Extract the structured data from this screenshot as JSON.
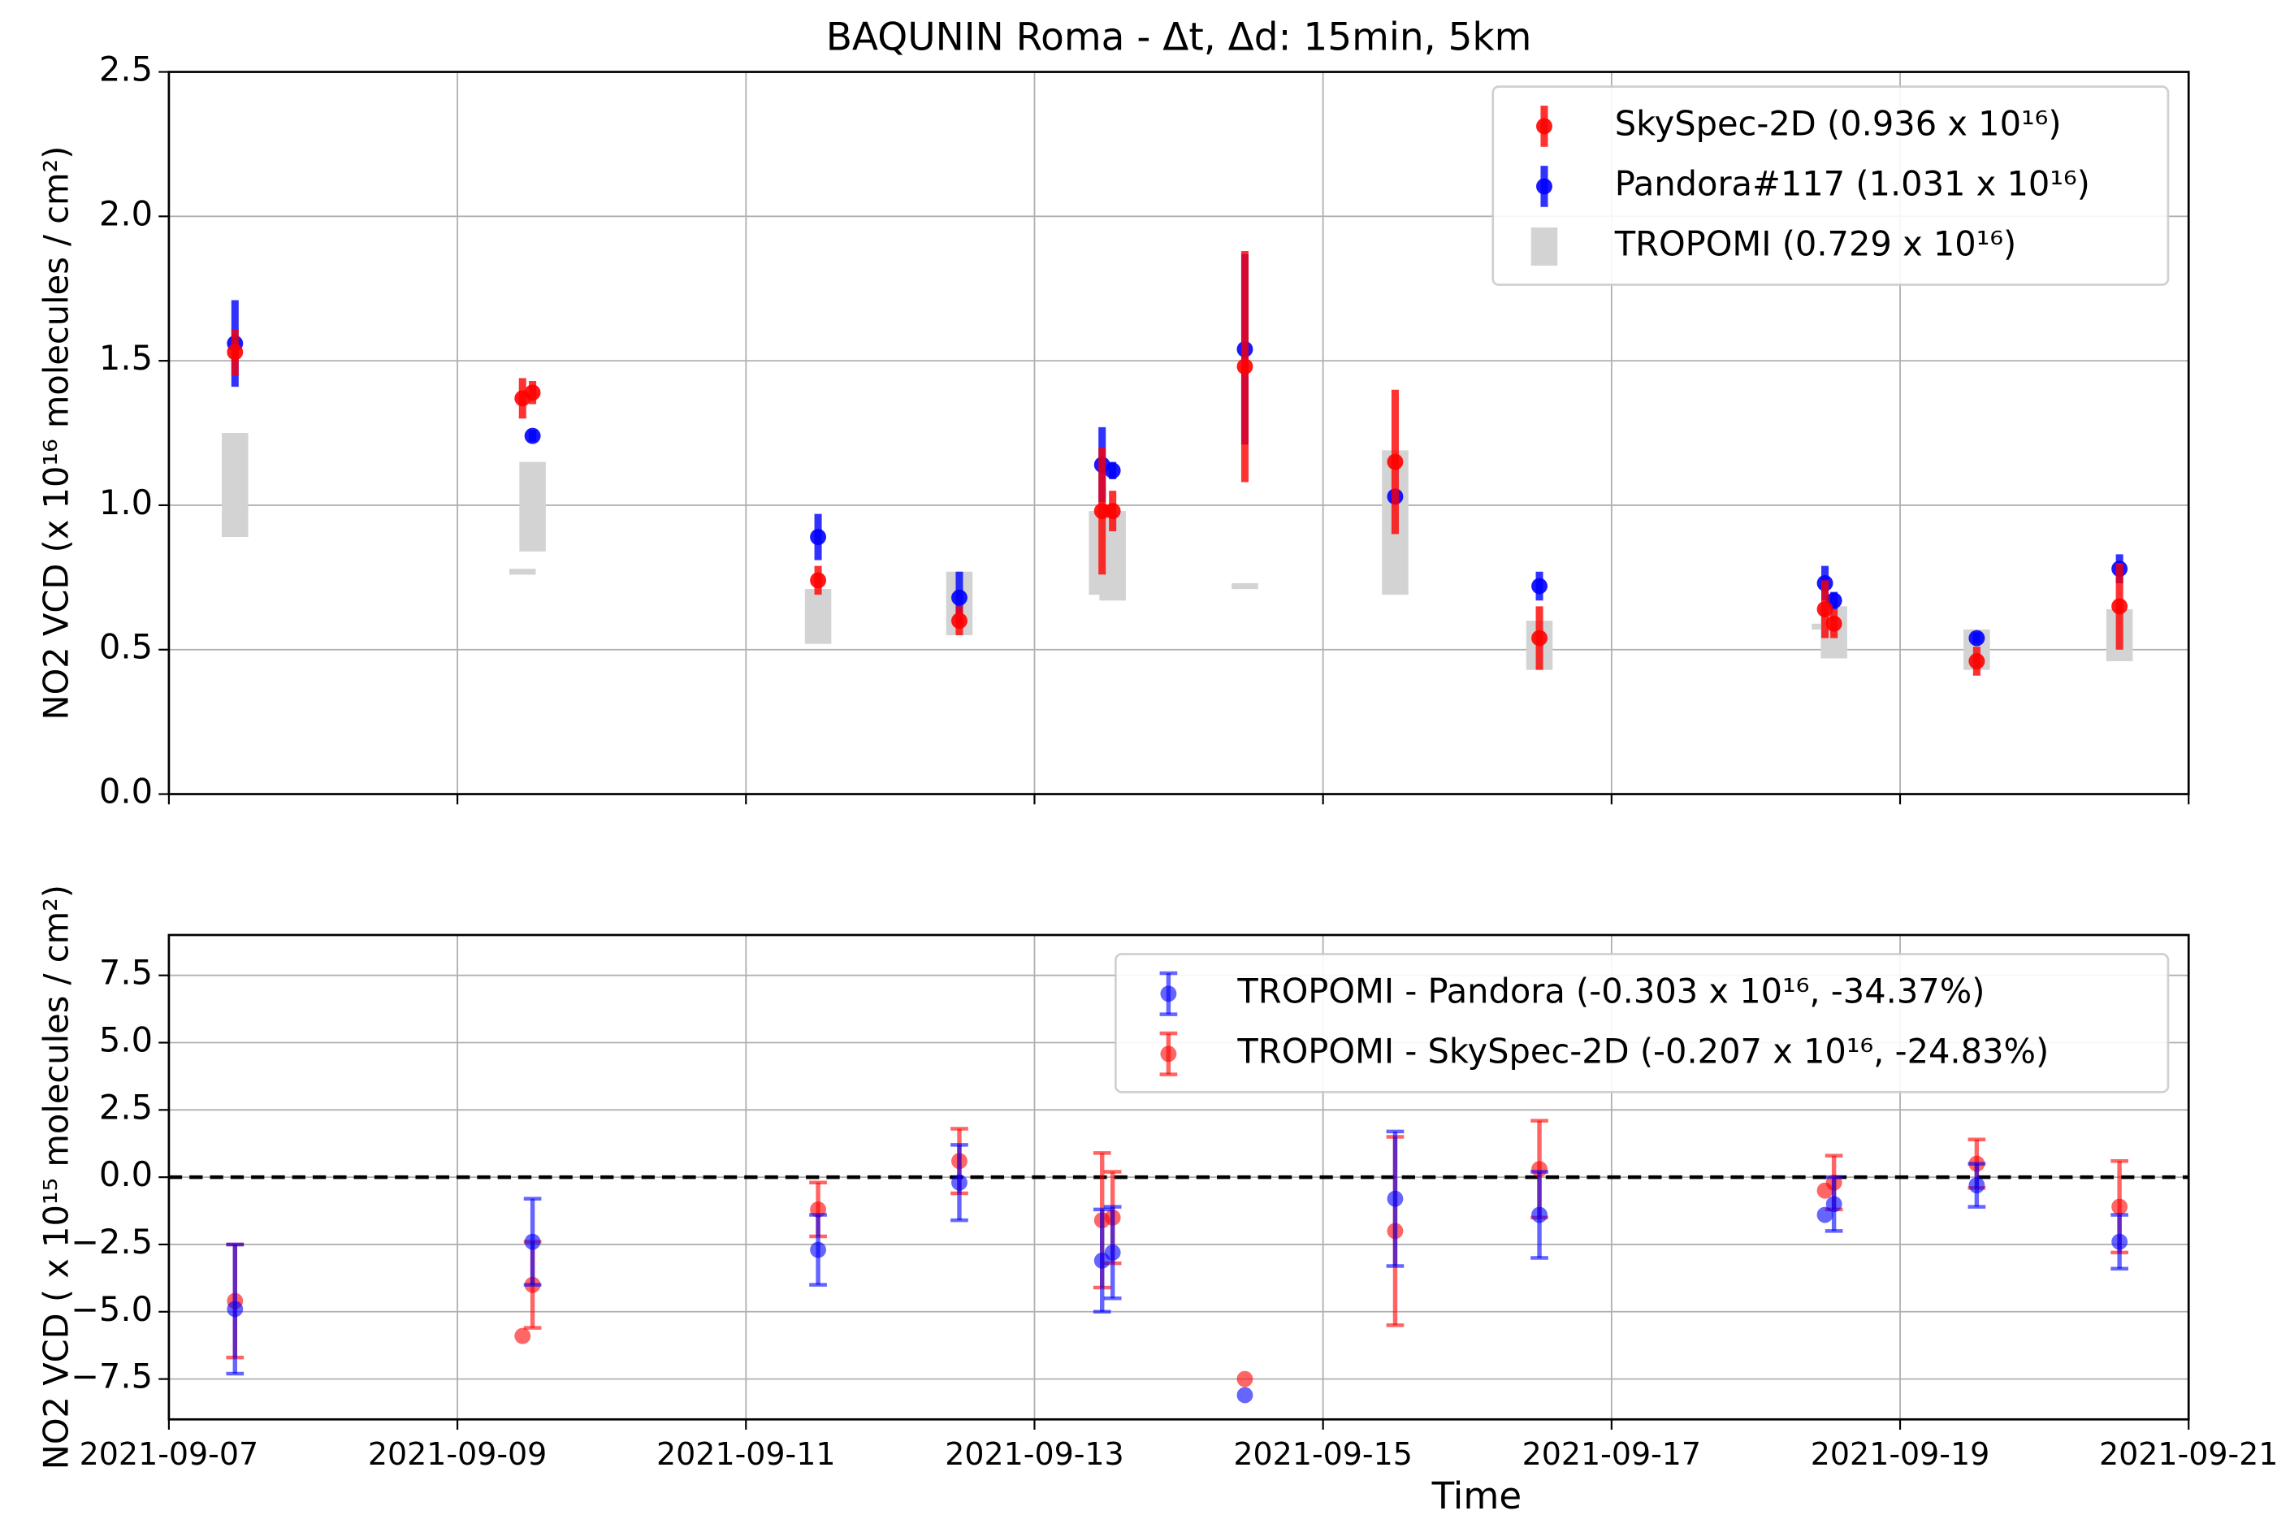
{
  "chart_data": [
    {
      "type": "errorbar",
      "title": "BAQUNIN Roma - Δt, Δd: 15min, 5km",
      "ylabel": "NO2 VCD (x 10¹⁶ molecules / cm²)",
      "x": [
        "2021-09-07T11:00",
        "2021-09-09T10:50",
        "2021-09-09T12:30",
        "2021-09-11T12:00",
        "2021-09-12T11:30",
        "2021-09-13T11:15",
        "2021-09-13T13:00",
        "2021-09-14T11:00",
        "2021-09-15T12:00",
        "2021-09-16T12:00",
        "2021-09-18T11:30",
        "2021-09-18T13:00",
        "2021-09-19T12:45",
        "2021-09-20T12:30"
      ],
      "xlim": [
        "2021-09-07",
        "2021-09-21"
      ],
      "xticks": [
        "2021-09-07",
        "2021-09-09",
        "2021-09-11",
        "2021-09-13",
        "2021-09-15",
        "2021-09-17",
        "2021-09-19",
        "2021-09-21"
      ],
      "ylim": [
        0,
        2.5
      ],
      "yticks": [
        {
          "value": 0,
          "label": "0.0"
        },
        {
          "value": 0.5,
          "label": "0.5"
        },
        {
          "value": 1,
          "label": "1.0"
        },
        {
          "value": 1.5,
          "label": "1.5"
        },
        {
          "value": 2,
          "label": "2.0"
        },
        {
          "value": 2.5,
          "label": "2.5"
        }
      ],
      "grid": true,
      "legend": "upper right",
      "series": [
        {
          "name": "TROPOMI (0.729 x 10¹⁶)",
          "color": "#d3d3d3",
          "style": "range",
          "low": [
            0.89,
            0.77,
            0.84,
            0.52,
            0.55,
            0.69,
            0.67,
            0.71,
            0.69,
            0.43,
            0.57,
            0.47,
            0.43,
            0.46
          ],
          "high": [
            1.25,
            0.78,
            1.15,
            0.71,
            0.77,
            0.98,
            0.98,
            0.73,
            1.19,
            0.6,
            0.59,
            0.65,
            0.57,
            0.64
          ]
        },
        {
          "name": "Pandora#117 (1.031 x 10¹⁶)",
          "color": "#0000ff",
          "values": [
            1.56,
            null,
            1.24,
            0.89,
            0.68,
            1.14,
            1.12,
            1.54,
            1.03,
            0.72,
            0.73,
            0.67,
            0.54,
            0.78
          ],
          "errors": [
            0.15,
            null,
            0.02,
            0.08,
            0.09,
            0.13,
            0.03,
            0.33,
            0.02,
            0.05,
            0.06,
            0.03,
            0.02,
            0.05
          ]
        },
        {
          "name": "SkySpec-2D (0.936 x 10¹⁶)",
          "color": "#ff0000",
          "values": [
            1.53,
            1.37,
            1.39,
            0.74,
            0.6,
            0.98,
            0.98,
            1.48,
            1.15,
            0.54,
            0.64,
            0.59,
            0.46,
            0.65
          ],
          "errors": [
            0.08,
            0.07,
            0.04,
            0.05,
            0.05,
            0.22,
            0.07,
            0.4,
            0.25,
            0.11,
            0.1,
            0.05,
            0.05,
            0.15
          ]
        }
      ]
    },
    {
      "type": "errorbar",
      "xlabel": "Time",
      "ylabel": "NO2 VCD ( x 10¹⁵ molecules / cm²)",
      "x": [
        "2021-09-07T11:00",
        "2021-09-09T10:50",
        "2021-09-09T12:30",
        "2021-09-11T12:00",
        "2021-09-12T11:30",
        "2021-09-13T11:15",
        "2021-09-13T13:00",
        "2021-09-14T11:00",
        "2021-09-15T12:00",
        "2021-09-16T12:00",
        "2021-09-18T11:30",
        "2021-09-18T13:00",
        "2021-09-19T12:45",
        "2021-09-20T12:30"
      ],
      "xlim": [
        "2021-09-07",
        "2021-09-21"
      ],
      "xticks": [
        "2021-09-07",
        "2021-09-09",
        "2021-09-11",
        "2021-09-13",
        "2021-09-15",
        "2021-09-17",
        "2021-09-19",
        "2021-09-21"
      ],
      "ylim": [
        -9,
        9
      ],
      "yticks": [
        {
          "value": -7.5,
          "label": "−7.5"
        },
        {
          "value": -5,
          "label": "−5.0"
        },
        {
          "value": -2.5,
          "label": "−2.5"
        },
        {
          "value": 0,
          "label": "0.0"
        },
        {
          "value": 2.5,
          "label": "2.5"
        },
        {
          "value": 5,
          "label": "5.0"
        },
        {
          "value": 7.5,
          "label": "7.5"
        }
      ],
      "grid": true,
      "legend": "upper right",
      "reference_line": 0,
      "series": [
        {
          "name": "TROPOMI - SkySpec-2D (-0.207 x 10¹⁶, -24.83%)",
          "color": "#ff0000",
          "values": [
            -4.6,
            -5.9,
            -4.0,
            -1.2,
            0.6,
            -1.6,
            -1.5,
            -7.5,
            -2.0,
            0.3,
            -0.5,
            -0.2,
            0.5,
            -1.1
          ],
          "errors": [
            2.1,
            null,
            1.6,
            1,
            1.2,
            2.5,
            1.7,
            null,
            3.5,
            1.8,
            null,
            1,
            0.9,
            1.7
          ]
        },
        {
          "name": "TROPOMI - Pandora (-0.303 x 10¹⁶, -34.37%)",
          "color": "#0000ff",
          "values": [
            -4.9,
            null,
            -2.4,
            -2.7,
            -0.2,
            -3.1,
            -2.8,
            -8.1,
            -0.8,
            -1.4,
            -1.4,
            -1.0,
            -0.3,
            -2.4
          ],
          "errors": [
            2.4,
            null,
            1.6,
            1.3,
            1.4,
            1.9,
            1.7,
            null,
            2.5,
            1.6,
            null,
            1,
            0.8,
            1
          ]
        }
      ]
    }
  ]
}
